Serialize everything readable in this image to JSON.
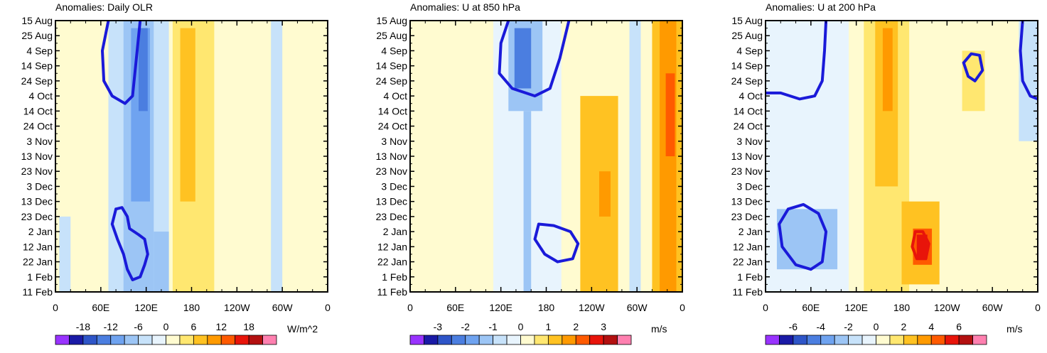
{
  "chart_data": [
    {
      "type": "heatmap",
      "title": "Anomalies: Daily OLR",
      "x_ticks": [
        "0",
        "60E",
        "120E",
        "180",
        "120W",
        "60W",
        "0"
      ],
      "x_range": [
        0,
        360
      ],
      "y_ticks": [
        "15 Aug",
        "25 Aug",
        "4 Sep",
        "14 Sep",
        "24 Sep",
        "4 Oct",
        "14 Oct",
        "24 Oct",
        "3 Nov",
        "13 Nov",
        "23 Nov",
        "3 Dec",
        "13 Dec",
        "23 Dec",
        "2 Jan",
        "12 Jan",
        "22 Jan",
        "1 Feb",
        "11 Feb"
      ],
      "y_range": [
        0,
        180
      ],
      "colorbar": {
        "units": "W/m^2",
        "labels": [
          "-18",
          "-12",
          "-6",
          "0",
          "6",
          "12",
          "18"
        ],
        "levels": [
          -21,
          -18,
          -15,
          -12,
          -9,
          -6,
          -3,
          0,
          3,
          6,
          9,
          12,
          15,
          18,
          21
        ],
        "colors": [
          "#9933ff",
          "#1a1aa6",
          "#2e55c8",
          "#4b7ee0",
          "#6fa3f0",
          "#9cc5f5",
          "#c7e2fa",
          "#e8f4fd",
          "#fffbd0",
          "#ffe770",
          "#ffc222",
          "#ff9a00",
          "#ff5a00",
          "#e8140a",
          "#b31010",
          "#ff80b0"
        ]
      },
      "bands": [
        {
          "x": [
            70,
            150
          ],
          "y": [
            0,
            180
          ],
          "value": -4
        },
        {
          "x": [
            90,
            130
          ],
          "y": [
            0,
            180
          ],
          "value": -8
        },
        {
          "x": [
            100,
            125
          ],
          "y": [
            5,
            120
          ],
          "value": -12
        },
        {
          "x": [
            110,
            122
          ],
          "y": [
            5,
            60
          ],
          "value": -15
        },
        {
          "x": [
            130,
            150
          ],
          "y": [
            140,
            180
          ],
          "value": -8
        },
        {
          "x": [
            155,
            210
          ],
          "y": [
            0,
            180
          ],
          "value": 4
        },
        {
          "x": [
            165,
            185
          ],
          "y": [
            5,
            120
          ],
          "value": 7
        },
        {
          "x": [
            215,
            260
          ],
          "y": [
            0,
            180
          ],
          "value": 2
        },
        {
          "x": [
            285,
            300
          ],
          "y": [
            0,
            180
          ],
          "value": -4
        },
        {
          "x": [
            310,
            345
          ],
          "y": [
            0,
            180
          ],
          "value": 2
        },
        {
          "x": [
            5,
            20
          ],
          "y": [
            130,
            180
          ],
          "value": -4
        }
      ],
      "contours": [
        {
          "color": "#1a1ad9",
          "points": [
            [
              70,
              0
            ],
            [
              62,
              20
            ],
            [
              64,
              40
            ],
            [
              75,
              50
            ],
            [
              92,
              55
            ],
            [
              102,
              50
            ],
            [
              106,
              30
            ],
            [
              112,
              0
            ]
          ]
        },
        {
          "color": "#1a1ad9",
          "points": [
            [
              80,
              125
            ],
            [
              75,
              135
            ],
            [
              82,
              145
            ],
            [
              90,
              155
            ],
            [
              95,
              165
            ],
            [
              102,
              172
            ],
            [
              112,
              170
            ],
            [
              118,
              162
            ],
            [
              122,
              155
            ],
            [
              118,
              145
            ],
            [
              110,
              142
            ],
            [
              98,
              138
            ],
            [
              95,
              130
            ],
            [
              88,
              124
            ],
            [
              80,
              125
            ]
          ]
        }
      ]
    },
    {
      "type": "heatmap",
      "title": "Anomalies: U at 850 hPa",
      "x_ticks": [
        "0",
        "60E",
        "120E",
        "180",
        "120W",
        "60W",
        "0"
      ],
      "x_range": [
        0,
        360
      ],
      "y_ticks": [
        "15 Aug",
        "25 Aug",
        "4 Sep",
        "14 Sep",
        "24 Sep",
        "4 Oct",
        "14 Oct",
        "24 Oct",
        "3 Nov",
        "13 Nov",
        "23 Nov",
        "3 Dec",
        "13 Dec",
        "23 Dec",
        "2 Jan",
        "12 Jan",
        "22 Jan",
        "1 Feb",
        "11 Feb"
      ],
      "y_range": [
        0,
        180
      ],
      "colorbar": {
        "units": "m/s",
        "labels": [
          "-3",
          "-2",
          "-1",
          "0",
          "1",
          "2",
          "3"
        ],
        "levels": [
          -3.5,
          -3,
          -2.5,
          -2,
          -1.5,
          -1,
          -0.5,
          0,
          0.5,
          1,
          1.5,
          2,
          2.5,
          3,
          3.5
        ],
        "colors": [
          "#9933ff",
          "#1a1aa6",
          "#2e55c8",
          "#4b7ee0",
          "#6fa3f0",
          "#9cc5f5",
          "#c7e2fa",
          "#e8f4fd",
          "#fffbd0",
          "#ffe770",
          "#ffc222",
          "#ff9a00",
          "#ff5a00",
          "#e8140a",
          "#b31010",
          "#ff80b0"
        ]
      },
      "bands": [
        {
          "x": [
            0,
            75
          ],
          "y": [
            0,
            180
          ],
          "value": 0.3
        },
        {
          "x": [
            110,
            200
          ],
          "y": [
            0,
            180
          ],
          "value": -0.4
        },
        {
          "x": [
            130,
            175
          ],
          "y": [
            0,
            60
          ],
          "value": -1.2
        },
        {
          "x": [
            138,
            160
          ],
          "y": [
            5,
            45
          ],
          "value": -2.1
        },
        {
          "x": [
            150,
            160
          ],
          "y": [
            60,
            180
          ],
          "value": -1.2
        },
        {
          "x": [
            225,
            275
          ],
          "y": [
            50,
            180
          ],
          "value": 1
        },
        {
          "x": [
            250,
            265
          ],
          "y": [
            100,
            130
          ],
          "value": 1.5
        },
        {
          "x": [
            320,
            360
          ],
          "y": [
            0,
            180
          ],
          "value": 1.2
        },
        {
          "x": [
            330,
            352
          ],
          "y": [
            0,
            180
          ],
          "value": 1.8
        },
        {
          "x": [
            338,
            350
          ],
          "y": [
            35,
            90
          ],
          "value": 2.3
        },
        {
          "x": [
            290,
            305
          ],
          "y": [
            0,
            180
          ],
          "value": -0.6
        }
      ],
      "contours": [
        {
          "color": "#1a1ad9",
          "points": [
            [
              130,
              0
            ],
            [
              120,
              15
            ],
            [
              118,
              35
            ],
            [
              135,
              45
            ],
            [
              165,
              50
            ],
            [
              185,
              45
            ],
            [
              198,
              25
            ],
            [
              210,
              0
            ]
          ]
        },
        {
          "color": "#1a1ad9",
          "points": [
            [
              170,
              135
            ],
            [
              165,
              145
            ],
            [
              178,
              155
            ],
            [
              195,
              160
            ],
            [
              215,
              158
            ],
            [
              222,
              148
            ],
            [
              212,
              140
            ],
            [
              190,
              136
            ],
            [
              170,
              135
            ]
          ]
        }
      ]
    },
    {
      "type": "heatmap",
      "title": "Anomalies: U at 200 hPa",
      "x_ticks": [
        "0",
        "60E",
        "120E",
        "180",
        "120W",
        "60W",
        "0"
      ],
      "x_range": [
        0,
        360
      ],
      "y_ticks": [
        "15 Aug",
        "25 Aug",
        "4 Sep",
        "14 Sep",
        "24 Sep",
        "4 Oct",
        "14 Oct",
        "24 Oct",
        "3 Nov",
        "13 Nov",
        "23 Nov",
        "3 Dec",
        "13 Dec",
        "23 Dec",
        "2 Jan",
        "12 Jan",
        "22 Jan",
        "1 Feb",
        "11 Feb"
      ],
      "y_range": [
        0,
        180
      ],
      "colorbar": {
        "units": "m/s",
        "labels": [
          "-6",
          "-4",
          "-2",
          "0",
          "2",
          "4",
          "6"
        ],
        "levels": [
          -7,
          -6,
          -5,
          -4,
          -3,
          -2,
          -1,
          0,
          1,
          2,
          3,
          4,
          5,
          6,
          7
        ],
        "colors": [
          "#9933ff",
          "#1a1aa6",
          "#2e55c8",
          "#4b7ee0",
          "#6fa3f0",
          "#9cc5f5",
          "#c7e2fa",
          "#e8f4fd",
          "#fffbd0",
          "#ffe770",
          "#ffc222",
          "#ff9a00",
          "#ff5a00",
          "#e8140a",
          "#b31010",
          "#ff80b0"
        ]
      },
      "bands": [
        {
          "x": [
            0,
            110
          ],
          "y": [
            0,
            180
          ],
          "value": -0.8
        },
        {
          "x": [
            15,
            95
          ],
          "y": [
            125,
            165
          ],
          "value": -2.3
        },
        {
          "x": [
            130,
            190
          ],
          "y": [
            0,
            180
          ],
          "value": 1.2
        },
        {
          "x": [
            145,
            175
          ],
          "y": [
            0,
            110
          ],
          "value": 2.3
        },
        {
          "x": [
            155,
            168
          ],
          "y": [
            5,
            60
          ],
          "value": 3.3
        },
        {
          "x": [
            180,
            230
          ],
          "y": [
            120,
            175
          ],
          "value": 2.5
        },
        {
          "x": [
            195,
            220
          ],
          "y": [
            138,
            162
          ],
          "value": 4.3
        },
        {
          "x": [
            200,
            214
          ],
          "y": [
            142,
            158
          ],
          "value": 5.3
        },
        {
          "x": [
            255,
            300
          ],
          "y": [
            0,
            180
          ],
          "value": 0.6
        },
        {
          "x": [
            260,
            290
          ],
          "y": [
            20,
            60
          ],
          "value": 1.5
        },
        {
          "x": [
            335,
            360
          ],
          "y": [
            0,
            80
          ],
          "value": -1.2
        }
      ],
      "contours": [
        {
          "color": "#1a1ad9",
          "points": [
            [
              0,
              48
            ],
            [
              20,
              48
            ],
            [
              45,
              52
            ],
            [
              65,
              50
            ],
            [
              75,
              40
            ],
            [
              78,
              20
            ],
            [
              80,
              0
            ]
          ]
        },
        {
          "color": "#1a1ad9",
          "points": [
            [
              30,
              125
            ],
            [
              18,
              135
            ],
            [
              22,
              150
            ],
            [
              40,
              162
            ],
            [
              60,
              165
            ],
            [
              75,
              160
            ],
            [
              80,
              140
            ],
            [
              70,
              128
            ],
            [
              50,
              122
            ],
            [
              30,
              125
            ]
          ]
        },
        {
          "color": "#1a1ad9",
          "points": [
            [
              262,
              28
            ],
            [
              268,
              37
            ],
            [
              277,
              40
            ],
            [
              287,
              33
            ],
            [
              283,
              23
            ],
            [
              272,
              22
            ],
            [
              262,
              28
            ]
          ]
        },
        {
          "color": "#1a1ad9",
          "points": [
            [
              360,
              52
            ],
            [
              350,
              50
            ],
            [
              340,
              40
            ],
            [
              337,
              20
            ],
            [
              340,
              0
            ]
          ]
        },
        {
          "color": "#e8140a",
          "points": [
            [
              198,
              140
            ],
            [
              194,
              150
            ],
            [
              200,
              158
            ],
            [
              212,
              158
            ],
            [
              216,
              148
            ],
            [
              208,
              140
            ],
            [
              198,
              140
            ]
          ]
        }
      ]
    }
  ]
}
